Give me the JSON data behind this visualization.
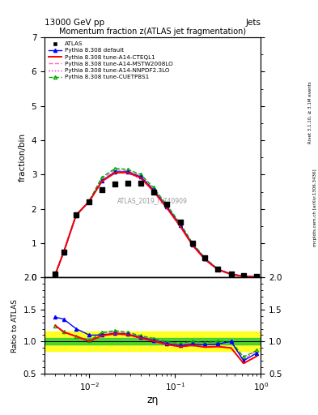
{
  "title": "13000 GeV pp",
  "top_right_label": "Jets",
  "main_title": "Momentum fraction z(ATLAS jet fragmentation)",
  "xlabel": "zη",
  "ylabel_main": "fraction/bin",
  "ylabel_ratio": "Ratio to ATLAS",
  "right_label1": "Rivet 3.1.10, ≥ 3.1M events",
  "right_label2": "mcplots.cern.ch [arXiv:1306.3436]",
  "watermark": "ATLAS_2019_I1740909",
  "x_data": [
    0.004,
    0.005,
    0.007,
    0.01,
    0.014,
    0.02,
    0.028,
    0.04,
    0.056,
    0.08,
    0.115,
    0.16,
    0.224,
    0.315,
    0.45,
    0.63,
    0.9
  ],
  "atlas_y": [
    0.09,
    0.75,
    1.82,
    2.21,
    2.56,
    2.72,
    2.76,
    2.75,
    2.5,
    2.13,
    1.62,
    1.0,
    0.57,
    0.25,
    0.1,
    0.05,
    0.02
  ],
  "default_y": [
    0.08,
    0.72,
    1.8,
    2.22,
    2.82,
    3.08,
    3.08,
    2.93,
    2.55,
    2.06,
    1.52,
    0.96,
    0.54,
    0.24,
    0.1,
    0.035,
    0.018
  ],
  "cteql1_y": [
    0.09,
    0.73,
    1.82,
    2.22,
    2.8,
    3.05,
    3.06,
    2.9,
    2.52,
    2.03,
    1.49,
    0.94,
    0.52,
    0.23,
    0.09,
    0.033,
    0.017
  ],
  "mstw_y": [
    0.09,
    0.73,
    1.82,
    2.24,
    2.88,
    3.13,
    3.11,
    2.96,
    2.58,
    2.08,
    1.54,
    0.97,
    0.55,
    0.24,
    0.1,
    0.036,
    0.018
  ],
  "nnpdf_y": [
    0.09,
    0.73,
    1.82,
    2.22,
    2.82,
    3.05,
    3.04,
    2.88,
    2.51,
    2.02,
    1.49,
    0.94,
    0.52,
    0.23,
    0.09,
    0.033,
    0.017
  ],
  "cuetp_y": [
    0.09,
    0.73,
    1.82,
    2.24,
    2.92,
    3.18,
    3.15,
    3.0,
    2.62,
    2.12,
    1.57,
    1.0,
    0.56,
    0.25,
    0.1,
    0.038,
    0.019
  ],
  "ratio_default": [
    1.38,
    1.35,
    1.2,
    1.1,
    1.1,
    1.13,
    1.115,
    1.065,
    1.02,
    0.968,
    0.938,
    0.96,
    0.947,
    0.96,
    1.0,
    0.7,
    0.82
  ],
  "ratio_cteql1": [
    1.25,
    1.15,
    1.08,
    1.005,
    1.09,
    1.12,
    1.108,
    1.054,
    1.008,
    0.953,
    0.92,
    0.94,
    0.912,
    0.92,
    0.9,
    0.66,
    0.77
  ],
  "ratio_mstw": [
    1.25,
    1.15,
    1.08,
    1.013,
    1.125,
    1.15,
    1.128,
    1.076,
    1.032,
    0.977,
    0.951,
    0.97,
    0.965,
    0.96,
    1.0,
    0.72,
    0.86
  ],
  "ratio_nnpdf": [
    1.25,
    1.15,
    1.08,
    1.005,
    1.1,
    1.12,
    1.098,
    1.047,
    1.004,
    0.949,
    0.92,
    0.94,
    0.912,
    0.92,
    0.9,
    0.66,
    0.77
  ],
  "ratio_cuetp": [
    1.25,
    1.15,
    1.08,
    1.013,
    1.14,
    1.17,
    1.142,
    1.09,
    1.048,
    0.995,
    0.969,
    1.0,
    0.982,
    1.0,
    1.0,
    0.76,
    0.86
  ],
  "color_default": "#0000ff",
  "color_cteql1": "#ff0000",
  "color_mstw": "#ff69b4",
  "color_nnpdf": "#ff00ff",
  "color_cuetp": "#00aa00",
  "color_atlas": "#000000",
  "ylim_main": [
    0,
    7
  ],
  "ylim_ratio": [
    0.5,
    2.0
  ],
  "xlim": [
    0.003,
    1.0
  ],
  "band_yellow": 0.15,
  "band_green": 0.05
}
